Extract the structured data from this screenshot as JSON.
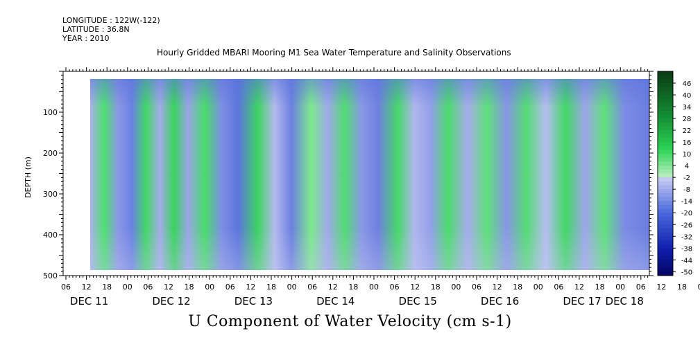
{
  "header": {
    "longitude": "LONGITUDE : 122W(-122)",
    "latitude": "LATITUDE : 36.8N",
    "year": "YEAR : 2010"
  },
  "chart_data": {
    "type": "heatmap",
    "title": "Hourly Gridded MBARI Mooring M1 Sea Water Temperature and Salinity Observations",
    "xlabel": "U Component of Water Velocity (cm s-1)",
    "ylabel": "DEPTH (m)",
    "x_hour_ticks": [
      "06",
      "12",
      "18",
      "00",
      "06",
      "12",
      "18",
      "00",
      "06",
      "12",
      "18",
      "00",
      "06",
      "12",
      "18",
      "00",
      "06",
      "12",
      "18",
      "00",
      "06",
      "12",
      "18",
      "00",
      "06",
      "12",
      "18",
      "00",
      "06",
      "12",
      "18",
      "00",
      "06"
    ],
    "x_day_labels": [
      "DEC 11",
      "DEC 12",
      "DEC 13",
      "DEC 14",
      "DEC 15",
      "DEC 16",
      "DEC 17",
      "DEC 18"
    ],
    "y_ticks": [
      100,
      200,
      300,
      400,
      500
    ],
    "ylim": [
      500,
      0
    ],
    "data_depth_range": [
      25,
      490
    ],
    "colorbar_levels": [
      46,
      40,
      34,
      28,
      22,
      16,
      10,
      4,
      -2,
      -8,
      -14,
      -20,
      -26,
      -32,
      -38,
      -44,
      -50
    ],
    "colorbar_labels": [
      "46",
      "40",
      "34",
      "28",
      "22",
      "16",
      "10",
      "4",
      "-2",
      "-8",
      "-14",
      "-20",
      "-26",
      "-32",
      "-38",
      "-44",
      "-50"
    ],
    "colors": {
      "strong_positive": "#0a3a14",
      "positive": "#40d860",
      "weak_positive": "#a8f0b0",
      "weak_negative": "#b8bef0",
      "negative": "#5a78e0",
      "strong_negative": "#040460"
    }
  }
}
